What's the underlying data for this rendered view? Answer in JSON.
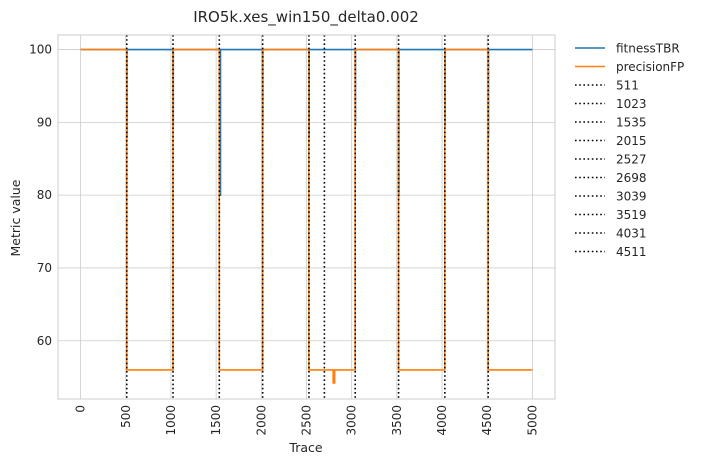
{
  "chart_data": {
    "type": "line",
    "title": "IRO5k.xes_win150_delta0.002",
    "xlabel": "Trace",
    "ylabel": "Metric value",
    "xlim": [
      -250,
      5250
    ],
    "ylim": [
      52,
      102
    ],
    "x_ticks": [
      0,
      500,
      1000,
      1500,
      2000,
      2500,
      3000,
      3500,
      4000,
      4500,
      5000
    ],
    "y_ticks": [
      60,
      70,
      80,
      90,
      100
    ],
    "grid": true,
    "legend_position": "outside-right",
    "series": [
      {
        "name": "fitnessTBR",
        "color": "#1f77b4",
        "points": [
          [
            0,
            100
          ],
          [
            511,
            100
          ],
          [
            511,
            88
          ],
          [
            514,
            88
          ],
          [
            514,
            100
          ],
          [
            1023,
            100
          ],
          [
            1023,
            89.6
          ],
          [
            1026,
            89.6
          ],
          [
            1026,
            100
          ],
          [
            1535,
            100
          ],
          [
            1535,
            88
          ],
          [
            1546,
            88
          ],
          [
            1546,
            80
          ],
          [
            1548,
            80
          ],
          [
            1548,
            100
          ],
          [
            2015,
            100
          ],
          [
            2015,
            89.6
          ],
          [
            2018,
            89.6
          ],
          [
            2018,
            100
          ],
          [
            2527,
            100
          ],
          [
            2527,
            88
          ],
          [
            2530,
            88
          ],
          [
            2530,
            100
          ],
          [
            3039,
            100
          ],
          [
            3039,
            89.6
          ],
          [
            3042,
            89.6
          ],
          [
            3042,
            100
          ],
          [
            3519,
            100
          ],
          [
            3519,
            80
          ],
          [
            3522,
            80
          ],
          [
            3522,
            100
          ],
          [
            4031,
            100
          ],
          [
            4031,
            89.6
          ],
          [
            4034,
            89.6
          ],
          [
            4034,
            100
          ],
          [
            4511,
            100
          ],
          [
            4511,
            88
          ],
          [
            4514,
            88
          ],
          [
            4514,
            100
          ],
          [
            5000,
            100
          ]
        ]
      },
      {
        "name": "precisionFP",
        "color": "#ff7f0e",
        "points": [
          [
            0,
            100
          ],
          [
            511,
            100
          ],
          [
            511,
            56
          ],
          [
            1023,
            56
          ],
          [
            1023,
            100
          ],
          [
            1535,
            100
          ],
          [
            1535,
            56
          ],
          [
            2015,
            56
          ],
          [
            2015,
            100
          ],
          [
            2527,
            100
          ],
          [
            2527,
            56
          ],
          [
            2795,
            56
          ],
          [
            2795,
            54.2
          ],
          [
            2812,
            54.2
          ],
          [
            2812,
            56
          ],
          [
            3039,
            56
          ],
          [
            3039,
            100
          ],
          [
            3519,
            100
          ],
          [
            3519,
            56
          ],
          [
            4031,
            56
          ],
          [
            4031,
            100
          ],
          [
            4511,
            100
          ],
          [
            4511,
            56
          ],
          [
            5000,
            56
          ]
        ]
      }
    ],
    "vlines": [
      511,
      1023,
      1535,
      2015,
      2527,
      2698,
      3039,
      3519,
      4031,
      4511
    ],
    "legend_labels": [
      "fitnessTBR",
      "precisionFP",
      "511",
      "1023",
      "1535",
      "2015",
      "2527",
      "2698",
      "3039",
      "3519",
      "4031",
      "4511"
    ]
  }
}
